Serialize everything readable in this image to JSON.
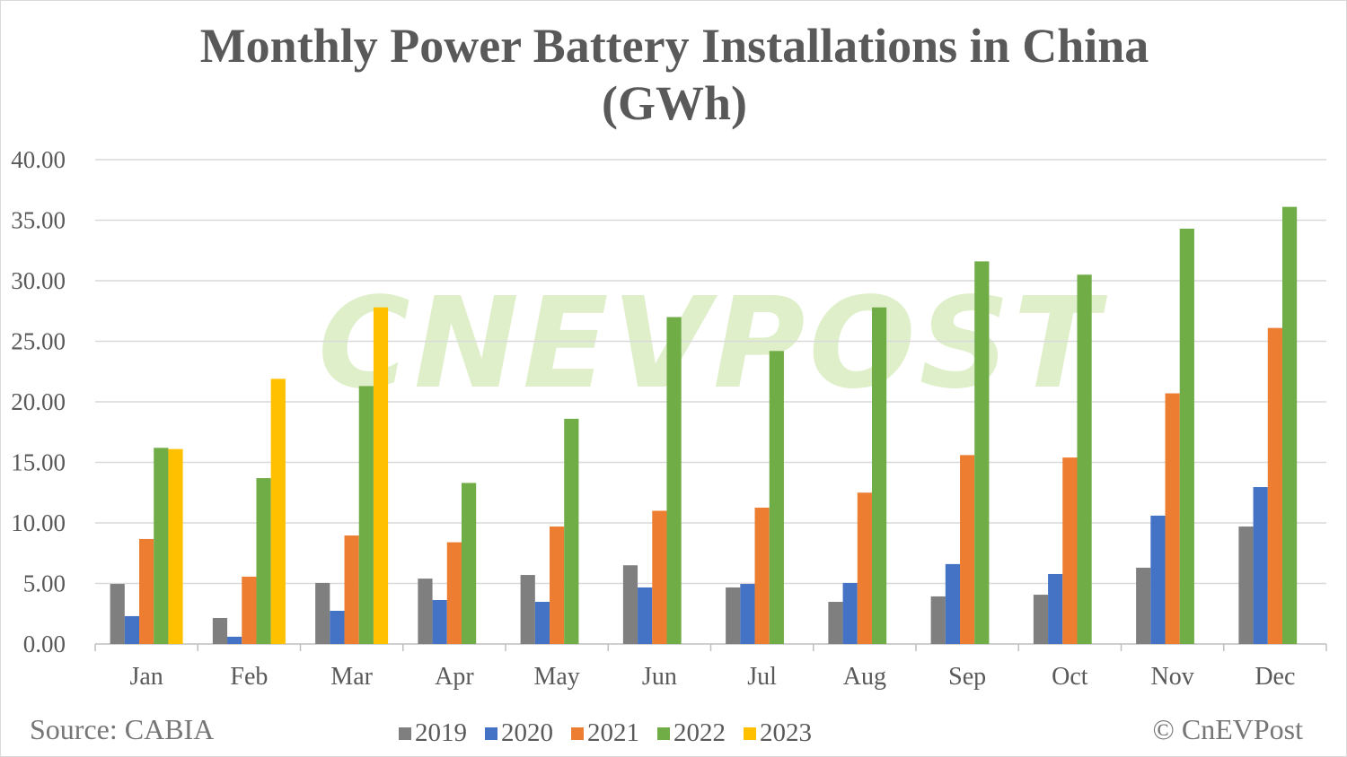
{
  "chart_data": {
    "type": "bar",
    "title": "Monthly Power Battery Installations in China",
    "subtitle": "(GWh)",
    "categories": [
      "Jan",
      "Feb",
      "Mar",
      "Apr",
      "May",
      "Jun",
      "Jul",
      "Aug",
      "Sep",
      "Oct",
      "Nov",
      "Dec"
    ],
    "series": [
      {
        "name": "2019",
        "color": "#7f7f7f",
        "values": [
          4.96,
          2.15,
          5.04,
          5.4,
          5.7,
          6.5,
          4.67,
          3.48,
          3.93,
          4.07,
          6.3,
          9.7
        ]
      },
      {
        "name": "2020",
        "color": "#4472c4",
        "values": [
          2.3,
          0.6,
          2.74,
          3.63,
          3.48,
          4.67,
          4.96,
          5.04,
          6.6,
          5.78,
          10.6,
          12.96
        ]
      },
      {
        "name": "2021",
        "color": "#ed7d31",
        "values": [
          8.67,
          5.56,
          8.96,
          8.4,
          9.7,
          11.0,
          11.26,
          12.5,
          15.6,
          15.4,
          20.7,
          26.1
        ]
      },
      {
        "name": "2022",
        "color": "#70ad47",
        "values": [
          16.2,
          13.7,
          21.3,
          13.3,
          18.6,
          27.0,
          24.2,
          27.8,
          31.6,
          30.5,
          34.3,
          36.1
        ]
      },
      {
        "name": "2023",
        "color": "#ffc000",
        "values": [
          16.1,
          21.9,
          27.8,
          null,
          null,
          null,
          null,
          null,
          null,
          null,
          null,
          null
        ]
      }
    ],
    "yticks": [
      "0.00",
      "5.00",
      "10.00",
      "15.00",
      "20.00",
      "25.00",
      "30.00",
      "35.00",
      "40.00"
    ],
    "ylim": [
      0,
      40
    ],
    "grid": true,
    "legend_position": "bottom",
    "xlabel": "",
    "ylabel": ""
  },
  "source": "Source: CABIA",
  "copyright": "© CnEVPost",
  "watermark": "CNEVPOST"
}
